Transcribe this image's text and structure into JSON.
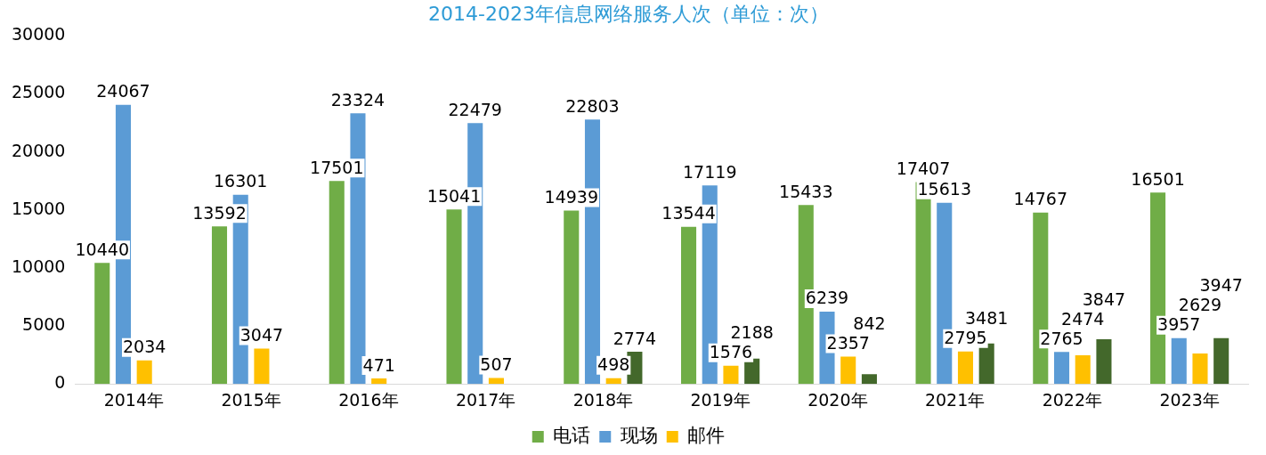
{
  "chart_data": {
    "type": "bar",
    "title": "2014-2023年信息网络服务人次（单位：次）",
    "categories": [
      "2014年",
      "2015年",
      "2016年",
      "2017年",
      "2018年",
      "2019年",
      "2020年",
      "2021年",
      "2022年",
      "2023年"
    ],
    "series": [
      {
        "name": "电话",
        "color": "#70ad47",
        "values": [
          10440,
          13592,
          17501,
          15041,
          14939,
          13544,
          15433,
          17407,
          14767,
          16501
        ]
      },
      {
        "name": "现场",
        "color": "#5b9bd5",
        "values": [
          24067,
          16301,
          23324,
          22479,
          22803,
          17119,
          6239,
          15613,
          2765,
          3957
        ]
      },
      {
        "name": "邮件",
        "color": "#ffc000",
        "values": [
          2034,
          3047,
          471,
          507,
          498,
          1576,
          2357,
          2795,
          2474,
          2629
        ]
      },
      {
        "color": "#43682b",
        "values": [
          null,
          null,
          null,
          null,
          2774,
          2188,
          842,
          3481,
          3847,
          3947
        ]
      }
    ],
    "ylim": [
      0,
      30000
    ],
    "yticks": [
      0,
      5000,
      10000,
      15000,
      20000,
      25000,
      30000
    ],
    "grid": false,
    "legend": "bottom",
    "data_labels": true
  }
}
